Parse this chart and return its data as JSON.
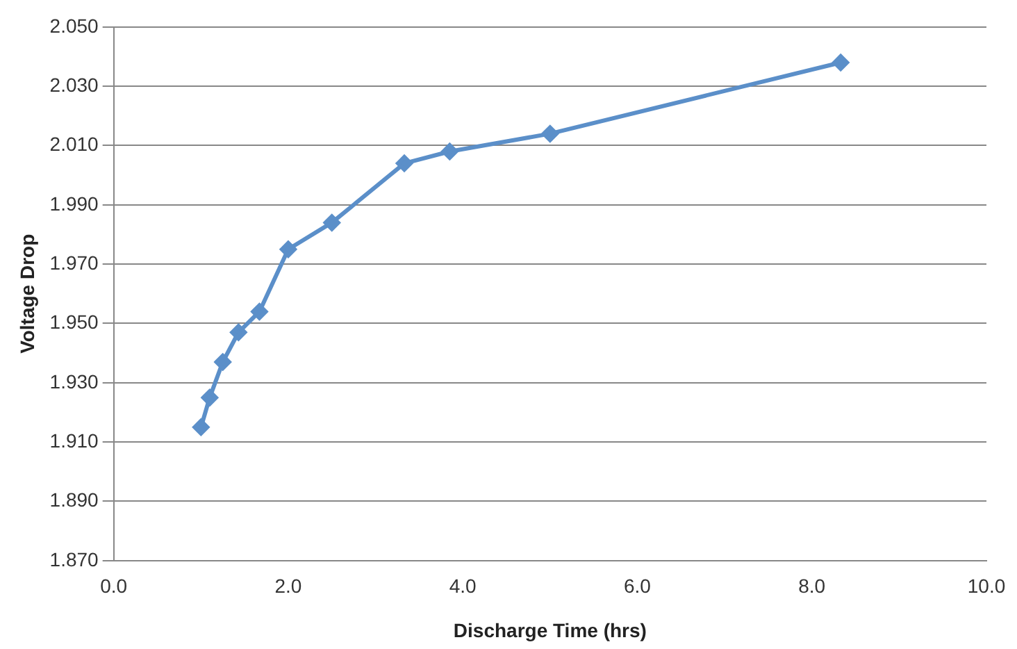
{
  "chart_data": {
    "type": "line",
    "xlabel": "Discharge Time (hrs)",
    "ylabel": "Voltage Drop",
    "x": [
      1.0,
      1.1,
      1.25,
      1.43,
      1.67,
      2.0,
      2.5,
      3.33,
      3.85,
      5.0,
      8.33
    ],
    "series": [
      {
        "color": "#5b8fc9",
        "values": [
          1.915,
          1.925,
          1.937,
          1.947,
          1.954,
          1.975,
          1.984,
          2.004,
          2.008,
          2.014,
          2.038
        ]
      }
    ],
    "xlim": [
      0,
      10
    ],
    "xticks": [
      {
        "value": 0,
        "label": "0.0"
      },
      {
        "value": 2,
        "label": "2.0"
      },
      {
        "value": 4,
        "label": "4.0"
      },
      {
        "value": 6,
        "label": "6.0"
      },
      {
        "value": 8,
        "label": "8.0"
      },
      {
        "value": 10,
        "label": "10.0"
      }
    ],
    "ylim": [
      1.87,
      2.05
    ],
    "yticks": [
      {
        "value": 1.87,
        "label": "1.870"
      },
      {
        "value": 1.89,
        "label": "1.890"
      },
      {
        "value": 1.91,
        "label": "1.910"
      },
      {
        "value": 1.93,
        "label": "1.930"
      },
      {
        "value": 1.95,
        "label": "1.950"
      },
      {
        "value": 1.97,
        "label": "1.970"
      },
      {
        "value": 1.99,
        "label": "1.990"
      },
      {
        "value": 2.01,
        "label": "2.010"
      },
      {
        "value": 2.03,
        "label": "2.030"
      },
      {
        "value": 2.05,
        "label": "2.050"
      }
    ],
    "grid": "y",
    "legend": false,
    "marker": "diamond",
    "line_style": "solid"
  }
}
